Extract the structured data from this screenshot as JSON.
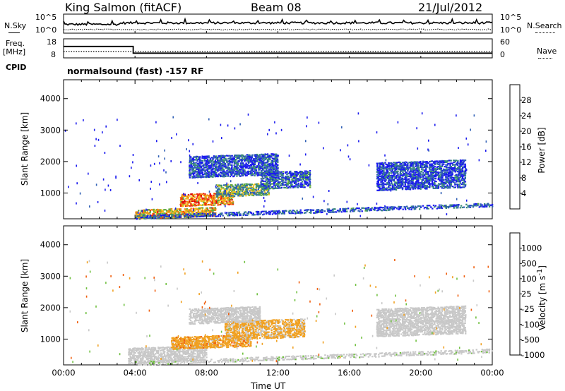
{
  "header": {
    "station": "King Salmon (fitACF)",
    "beam": "Beam 08",
    "date": "21/Jul/2012"
  },
  "nsky_panel": {
    "left_label": "N.Sky",
    "left_ticks": [
      "10^5",
      "10^0"
    ],
    "right_label": "N.Search",
    "right_ticks": [
      "10^5",
      "10^0"
    ]
  },
  "freq_panel": {
    "left_label_1": "Freq.",
    "left_label_2": "[MHz]",
    "left_ticks": [
      "18",
      "8"
    ],
    "right_label": "Nave",
    "right_ticks": [
      "60",
      "0"
    ],
    "freq_series": [
      [
        0,
        14
      ],
      [
        3.9,
        14
      ],
      [
        3.9,
        10.5
      ],
      [
        24,
        10.5
      ]
    ],
    "nave_series": [
      [
        0,
        20
      ],
      [
        24,
        20
      ]
    ]
  },
  "cpid": {
    "label": "CPID",
    "value": "normalsound (fast) -157 RF"
  },
  "chart_data": [
    {
      "type": "heatmap",
      "xlabel": "",
      "ylabel": "Slant Range [km]",
      "xlim": [
        0,
        24
      ],
      "ylim": [
        180,
        4600
      ],
      "yticks": [
        "1000",
        "2000",
        "3000",
        "4000"
      ],
      "colorbar_label": "Power [dB]",
      "colorbar_ticks": [
        "4",
        "8",
        "12",
        "16",
        "20",
        "24",
        "28"
      ],
      "colorbar_colors": [
        "#1a1aee",
        "#2f5fb5",
        "#3a8a7a",
        "#5faa40",
        "#f0c020",
        "#f08a10",
        "#ee2a10",
        "#dd0000"
      ],
      "blobs": [
        {
          "x0": 4.0,
          "x1": 8.5,
          "r0": 200,
          "r1": 500,
          "level": 0.6
        },
        {
          "x0": 6.5,
          "x1": 9.5,
          "r0": 600,
          "r1": 1000,
          "level": 0.7
        },
        {
          "x0": 8.5,
          "x1": 11.5,
          "r0": 900,
          "r1": 1300,
          "level": 0.35
        },
        {
          "x0": 11.0,
          "x1": 13.8,
          "r0": 1150,
          "r1": 1700,
          "level": 0.15
        },
        {
          "x0": 7.0,
          "x1": 12.0,
          "r0": 1500,
          "r1": 2200,
          "level": 0.1
        },
        {
          "x0": 17.5,
          "x1": 22.5,
          "r0": 1100,
          "r1": 2000,
          "level": 0.08
        },
        {
          "x0": 4.0,
          "x1": 24.0,
          "r0": 190,
          "r1": 320,
          "level": 0.12
        }
      ]
    },
    {
      "type": "heatmap",
      "xlabel": "Time UT",
      "ylabel": "Slant Range [km]",
      "xlim": [
        0,
        24
      ],
      "ylim": [
        180,
        4600
      ],
      "xticks": [
        "00:00",
        "04:00",
        "08:00",
        "12:00",
        "16:00",
        "20:00",
        "00:00"
      ],
      "yticks": [
        "1000",
        "2000",
        "3000",
        "4000"
      ],
      "colorbar_label": "Velocity [m s^-1]",
      "colorbar_ticks": [
        "1000",
        "500",
        "100",
        "25",
        "-25",
        "-100",
        "-500",
        "-1000"
      ],
      "colorbar_colors": [
        "#2040c0",
        "#3a8a7a",
        "#70c040",
        "#c8c8c8",
        "#c8c8c8",
        "#f0a020",
        "#f06010",
        "#e01010"
      ],
      "blobs": [
        {
          "x0": 3.6,
          "x1": 8.0,
          "r0": 250,
          "r1": 750,
          "level": 0.45
        },
        {
          "x0": 6.0,
          "x1": 10.5,
          "r0": 700,
          "r1": 1100,
          "level": 0.75
        },
        {
          "x0": 9.0,
          "x1": 13.5,
          "r0": 1000,
          "r1": 1600,
          "level": 0.7
        },
        {
          "x0": 7.0,
          "x1": 11.0,
          "r0": 1500,
          "r1": 2000,
          "level": 0.45
        },
        {
          "x0": 17.5,
          "x1": 22.5,
          "r0": 1100,
          "r1": 2000,
          "level": 0.45
        },
        {
          "x0": 4.0,
          "x1": 24.0,
          "r0": 190,
          "r1": 330,
          "level": 0.25
        }
      ]
    }
  ]
}
